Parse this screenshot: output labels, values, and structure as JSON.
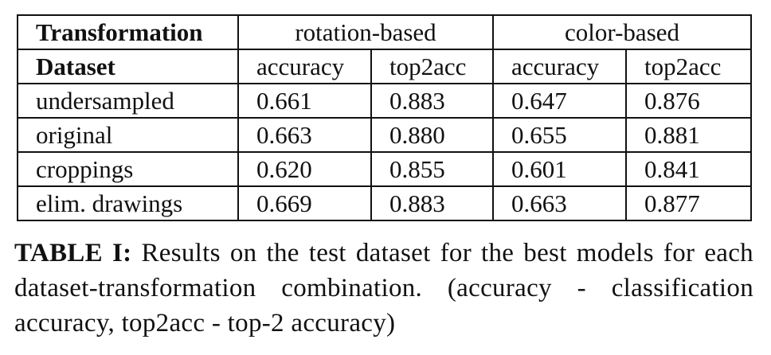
{
  "table": {
    "header_row1": {
      "first": "Transformation",
      "groups": [
        "rotation-based",
        "color-based"
      ]
    },
    "header_row2": {
      "first": "Dataset",
      "columns": [
        "accuracy",
        "top2acc",
        "accuracy",
        "top2acc"
      ]
    },
    "rows": [
      {
        "dataset": "undersampled",
        "values": [
          "0.661",
          "0.883",
          "0.647",
          "0.876"
        ]
      },
      {
        "dataset": "original",
        "values": [
          "0.663",
          "0.880",
          "0.655",
          "0.881"
        ]
      },
      {
        "dataset": "croppings",
        "values": [
          "0.620",
          "0.855",
          "0.601",
          "0.841"
        ]
      },
      {
        "dataset": "elim. drawings",
        "values": [
          "0.669",
          "0.883",
          "0.663",
          "0.877"
        ]
      }
    ]
  },
  "caption": {
    "label": "TABLE I:",
    "text": " Results on the test dataset for the best models for each dataset-transformation combination. (accuracy - classification accuracy, top2acc - top-2 accuracy)"
  }
}
